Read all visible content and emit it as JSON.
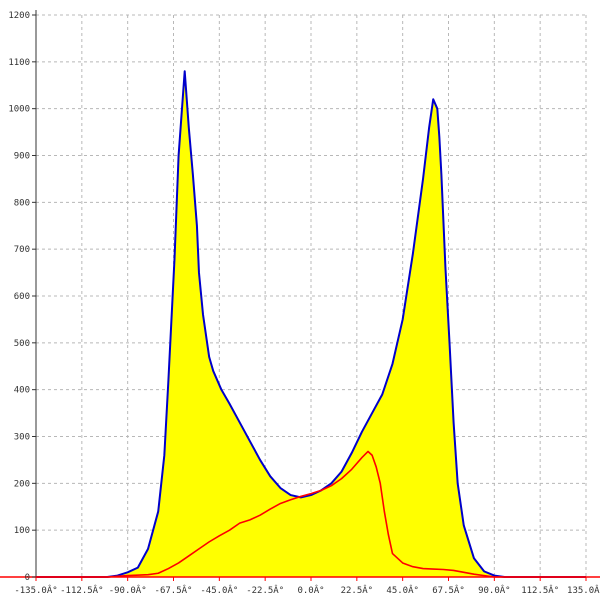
{
  "chart_data": {
    "type": "area",
    "title": "",
    "xlabel": "",
    "ylabel": "",
    "xlim": [
      -135,
      135
    ],
    "ylim": [
      0,
      1200
    ],
    "grid": true,
    "x_ticks": [
      -135,
      -112.5,
      -90,
      -67.5,
      -45,
      -22.5,
      0,
      22.5,
      45,
      67.5,
      90,
      112.5,
      135
    ],
    "x_tick_labels": [
      "-135.0Â°",
      "-112.5Â°",
      "-90.0Â°",
      "-67.5Â°",
      "-45.0Â°",
      "-22.5Â°",
      "0.0Â°",
      "22.5Â°",
      "45.0Â°",
      "67.5Â°",
      "90.0Â°",
      "112.5Â°",
      "135.0Â°"
    ],
    "y_ticks": [
      0,
      100,
      200,
      300,
      400,
      500,
      600,
      700,
      800,
      900,
      1000,
      1100,
      1200
    ],
    "y_tick_labels": [
      "0",
      "100",
      "200",
      "300",
      "400",
      "500",
      "600",
      "700",
      "800",
      "900",
      "1000",
      "1100",
      "1200"
    ],
    "series": [
      {
        "color": "#0000cc",
        "fill": "#ffff00",
        "x": [
          -135,
          -100,
          -95,
          -90,
          -85,
          -80,
          -75,
          -72,
          -70,
          -67,
          -65,
          -62,
          -60,
          -58,
          -56,
          -55,
          -53,
          -50,
          -48,
          -46,
          -44,
          -40,
          -35,
          -30,
          -25,
          -20,
          -15,
          -10,
          -5,
          0,
          5,
          10,
          15,
          20,
          25,
          30,
          35,
          40,
          45,
          50,
          55,
          58,
          60,
          62,
          63,
          64,
          65,
          66,
          68,
          70,
          72,
          75,
          80,
          85,
          90,
          95,
          135
        ],
        "y": [
          0,
          0,
          3,
          10,
          20,
          60,
          140,
          260,
          420,
          680,
          900,
          1080,
          960,
          860,
          750,
          650,
          560,
          470,
          440,
          420,
          400,
          370,
          330,
          290,
          250,
          215,
          190,
          175,
          170,
          175,
          185,
          200,
          225,
          265,
          310,
          350,
          390,
          455,
          550,
          690,
          850,
          960,
          1020,
          1000,
          940,
          860,
          760,
          660,
          500,
          330,
          200,
          110,
          40,
          12,
          3,
          0,
          0
        ]
      },
      {
        "color": "#ff0000",
        "x": [
          -135,
          -100,
          -90,
          -80,
          -75,
          -70,
          -65,
          -60,
          -55,
          -50,
          -45,
          -40,
          -35,
          -30,
          -25,
          -20,
          -15,
          -10,
          -5,
          0,
          5,
          10,
          15,
          20,
          25,
          28,
          30,
          32,
          34,
          36,
          38,
          40,
          45,
          50,
          55,
          60,
          65,
          70,
          75,
          80,
          90,
          135
        ],
        "y": [
          0,
          0,
          3,
          5,
          8,
          18,
          30,
          45,
          60,
          75,
          88,
          100,
          115,
          122,
          132,
          145,
          157,
          165,
          172,
          178,
          185,
          195,
          210,
          230,
          255,
          268,
          260,
          235,
          200,
          140,
          90,
          50,
          30,
          22,
          18,
          17,
          16,
          14,
          10,
          6,
          0,
          0
        ]
      }
    ]
  },
  "colors": {
    "axis": "#ff0000",
    "left_axis": "#333333",
    "grid": "#b8b8b8",
    "fill": "#ffff00",
    "outline": "#0000cc",
    "second_series": "#ff0000"
  }
}
